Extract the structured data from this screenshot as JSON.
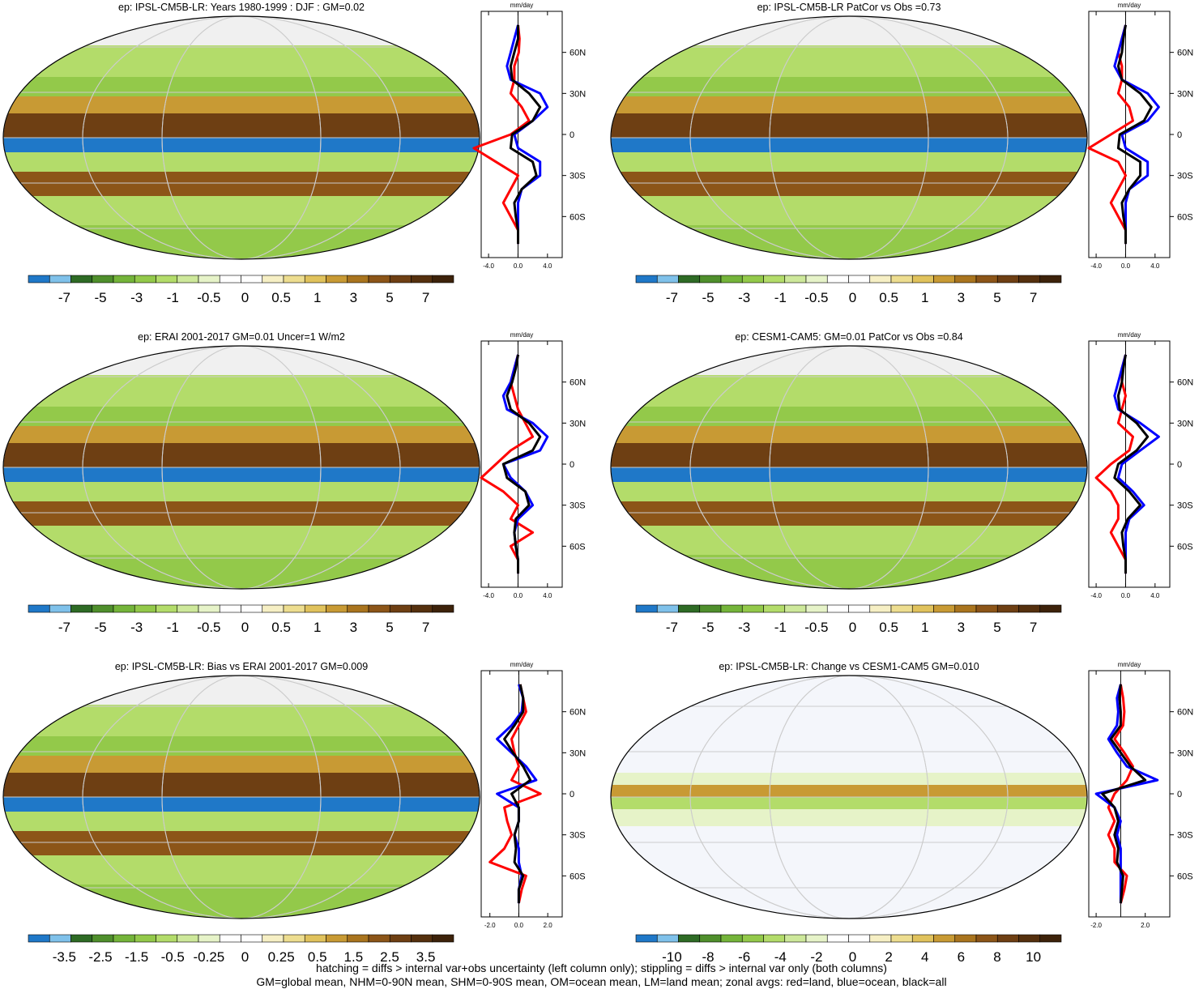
{
  "colors": {
    "precip_scale": [
      "#1f78c8",
      "#7fc1ea",
      "#2e6b25",
      "#4f8f2c",
      "#74b43a",
      "#93c94a",
      "#b3dc6a",
      "#cde89a",
      "#e6f3c8",
      "#ffffff",
      "#ffffff",
      "#f6efc4",
      "#eddd8f",
      "#e0c25c",
      "#c89a34",
      "#a9741e",
      "#8c5518",
      "#6e3f13",
      "#55300e",
      "#3d220a"
    ],
    "land_line": "#ff0000",
    "ocean_line": "#0000ff",
    "all_line": "#000000"
  },
  "footer": {
    "line1": "hatching = diffs > internal var+obs uncertainty (left column only); stippling = diffs > internal var only (both columns)",
    "line2": "GM=global mean, NHM=0-90N mean, SHM=0-90S mean, OM=ocean mean, LM=land mean; zonal avgs: red=land, blue=ocean, black=all"
  },
  "chart_data": [
    {
      "type": "heatmap",
      "title": "ep: IPSL-CM5B-LR: Years 1980-1999 : DJF : GM=0.02",
      "colorbar_labels": [
        "-7",
        "-5",
        "-3",
        "-1",
        "-0.5",
        "0",
        "0.5",
        "1",
        "3",
        "5",
        "7"
      ],
      "zonal_xlabel": "mm/day",
      "zonal_xticks": [
        "-4.0",
        "0.0",
        "4.0"
      ],
      "zonal_xlim": [
        -5,
        6
      ],
      "lat_ticks": [
        "60N",
        "30N",
        "0",
        "30S",
        "60S"
      ],
      "series": [
        {
          "color": "land",
          "lat": [
            80,
            70,
            60,
            50,
            40,
            30,
            20,
            10,
            0,
            -10,
            -20,
            -30,
            -40,
            -50,
            -60,
            -70,
            -80
          ],
          "values": [
            0,
            0.2,
            0.1,
            -0.5,
            -0.5,
            -1,
            0.5,
            1.5,
            -1,
            -6,
            -3,
            0,
            -1,
            -2,
            -1,
            0,
            0
          ]
        },
        {
          "color": "ocean",
          "lat": [
            80,
            70,
            60,
            50,
            40,
            30,
            20,
            10,
            0,
            -10,
            -20,
            -30,
            -40,
            -50,
            -60,
            -70,
            -80
          ],
          "values": [
            0,
            -0.5,
            -1,
            -1.5,
            -1,
            3,
            4,
            2,
            -0.5,
            0,
            3,
            3,
            0.5,
            0,
            0,
            0,
            0
          ]
        },
        {
          "color": "all",
          "lat": [
            80,
            70,
            60,
            50,
            40,
            30,
            20,
            10,
            0,
            -10,
            -20,
            -30,
            -40,
            -50,
            -60,
            -70,
            -80
          ],
          "values": [
            0,
            0,
            -0.5,
            -1,
            -0.8,
            1.5,
            3,
            2,
            -0.8,
            -1,
            2,
            2.5,
            0.5,
            -0.5,
            -0.3,
            0,
            0
          ]
        }
      ]
    },
    {
      "type": "heatmap",
      "title": "ep: IPSL-CM5B-LR PatCor vs Obs =0.73",
      "colorbar_labels": [
        "-7",
        "-5",
        "-3",
        "-1",
        "-0.5",
        "0",
        "0.5",
        "1",
        "3",
        "5",
        "7"
      ],
      "zonal_xlabel": "mm/day",
      "zonal_xticks": [
        "-4.0",
        "0.0",
        "4.0"
      ],
      "zonal_xlim": [
        -5,
        6
      ],
      "lat_ticks": [
        "60N",
        "30N",
        "0",
        "30S",
        "60S"
      ],
      "series": [
        {
          "color": "land",
          "lat": [
            80,
            70,
            60,
            50,
            40,
            30,
            20,
            10,
            0,
            -10,
            -20,
            -30,
            -40,
            -50,
            -60,
            -70,
            -80
          ],
          "values": [
            0,
            -0.5,
            -1,
            -0.5,
            -0.5,
            -1,
            0.5,
            1,
            -2,
            -5,
            -1,
            0,
            -1,
            -2,
            -1,
            0,
            0
          ]
        },
        {
          "color": "ocean",
          "lat": [
            80,
            70,
            60,
            50,
            40,
            30,
            20,
            10,
            0,
            -10,
            -20,
            -30,
            -40,
            -50,
            -60,
            -70,
            -80
          ],
          "values": [
            0,
            -0.5,
            -1,
            -1.5,
            -0.5,
            3,
            4.5,
            3,
            -0.5,
            0,
            3,
            3,
            0.5,
            0,
            0,
            0,
            0
          ]
        },
        {
          "color": "all",
          "lat": [
            80,
            70,
            60,
            50,
            40,
            30,
            20,
            10,
            0,
            -10,
            -20,
            -30,
            -40,
            -50,
            -60,
            -70,
            -80
          ],
          "values": [
            0,
            -0.3,
            -0.5,
            -1,
            -0.5,
            2,
            3.5,
            2.5,
            -0.8,
            -1,
            2,
            2,
            0.5,
            -0.5,
            -0.3,
            0,
            0
          ]
        }
      ]
    },
    {
      "type": "heatmap",
      "title": "ep: ERAI 2001-2017 GM=0.01 Uncer=1 W/m2",
      "colorbar_labels": [
        "-7",
        "-5",
        "-3",
        "-1",
        "-0.5",
        "0",
        "0.5",
        "1",
        "3",
        "5",
        "7"
      ],
      "zonal_xlabel": "mm/day",
      "zonal_xticks": [
        "-4.0",
        "0.0",
        "4.0"
      ],
      "zonal_xlim": [
        -5,
        6
      ],
      "lat_ticks": [
        "60N",
        "30N",
        "0",
        "30S",
        "60S"
      ],
      "series": [
        {
          "color": "land",
          "lat": [
            80,
            70,
            60,
            50,
            40,
            30,
            20,
            10,
            0,
            -10,
            -20,
            -30,
            -40,
            -50,
            -60,
            -70,
            -80
          ],
          "values": [
            0,
            -0.5,
            -1,
            -0.5,
            0,
            1,
            2,
            -1,
            -3,
            -5,
            -2,
            0,
            -1,
            2,
            -1,
            0,
            0
          ]
        },
        {
          "color": "ocean",
          "lat": [
            80,
            70,
            60,
            50,
            40,
            30,
            20,
            10,
            0,
            -10,
            -20,
            -30,
            -40,
            -50,
            -60,
            -70,
            -80
          ],
          "values": [
            0,
            -0.5,
            -1,
            -2,
            -1.5,
            2,
            4,
            3,
            -2,
            -1,
            1,
            2,
            0,
            -0.5,
            -0.3,
            0,
            0
          ]
        },
        {
          "color": "all",
          "lat": [
            80,
            70,
            60,
            50,
            40,
            30,
            20,
            10,
            0,
            -10,
            -20,
            -30,
            -40,
            -50,
            -60,
            -70,
            -80
          ],
          "values": [
            0,
            -0.3,
            -0.8,
            -1.5,
            -1,
            1.5,
            3,
            2,
            -2,
            -1.5,
            1,
            1.5,
            -0.3,
            -0.5,
            -0.3,
            0,
            0
          ]
        }
      ]
    },
    {
      "type": "heatmap",
      "title": "ep: CESM1-CAM5: GM=0.01 PatCor vs Obs =0.84",
      "colorbar_labels": [
        "-7",
        "-5",
        "-3",
        "-1",
        "-0.5",
        "0",
        "0.5",
        "1",
        "3",
        "5",
        "7"
      ],
      "zonal_xlabel": "mm/day",
      "zonal_xticks": [
        "-4.0",
        "0.0",
        "4.0"
      ],
      "zonal_xlim": [
        -5,
        6
      ],
      "lat_ticks": [
        "60N",
        "30N",
        "0",
        "30S",
        "60S"
      ],
      "series": [
        {
          "color": "land",
          "lat": [
            80,
            70,
            60,
            50,
            40,
            30,
            20,
            10,
            0,
            -10,
            -20,
            -30,
            -40,
            -50,
            -60,
            -70,
            -80
          ],
          "values": [
            0,
            -0.5,
            -0.5,
            0,
            -0.5,
            -1,
            1,
            0.5,
            -2,
            -4,
            -2,
            -1,
            -1,
            -2,
            -1,
            0,
            0
          ]
        },
        {
          "color": "ocean",
          "lat": [
            80,
            70,
            60,
            50,
            40,
            30,
            20,
            10,
            0,
            -10,
            -20,
            -30,
            -40,
            -50,
            -60,
            -70,
            -80
          ],
          "values": [
            0,
            -0.5,
            -1,
            -1.5,
            -1,
            2,
            4.5,
            2,
            -0.5,
            -1,
            1,
            2.5,
            0.5,
            0,
            0,
            0,
            0
          ]
        },
        {
          "color": "all",
          "lat": [
            80,
            70,
            60,
            50,
            40,
            30,
            20,
            10,
            0,
            -10,
            -20,
            -30,
            -40,
            -50,
            -60,
            -70,
            -80
          ],
          "values": [
            0,
            -0.3,
            -0.5,
            -1,
            -0.8,
            1.5,
            3,
            1.5,
            -1,
            -1.5,
            0.5,
            2,
            0.3,
            -0.5,
            -0.3,
            0,
            0
          ]
        }
      ]
    },
    {
      "type": "heatmap",
      "title": "ep: IPSL-CM5B-LR: Bias vs ERAI 2001-2017 GM=0.009",
      "colorbar_labels": [
        "-3.5",
        "-2.5",
        "-1.5",
        "-0.5",
        "-0.25",
        "0",
        "0.25",
        "0.5",
        "1.5",
        "2.5",
        "3.5"
      ],
      "zonal_xlabel": "mm/day",
      "zonal_xticks": [
        "-2.0",
        "0.0",
        "2.0"
      ],
      "zonal_xlim": [
        -2.6,
        3.0
      ],
      "lat_ticks": [
        "60N",
        "30N",
        "0",
        "30S",
        "60S"
      ],
      "series": [
        {
          "color": "land",
          "lat": [
            80,
            70,
            60,
            50,
            40,
            30,
            20,
            10,
            0,
            -10,
            -20,
            -30,
            -40,
            -50,
            -60,
            -70,
            -80
          ],
          "values": [
            0.1,
            0.3,
            0.5,
            0,
            -0.5,
            -0.3,
            0,
            -0.5,
            1.5,
            -1,
            -0.8,
            -0.5,
            -1,
            -2,
            0.5,
            0.2,
            0
          ]
        },
        {
          "color": "ocean",
          "lat": [
            80,
            70,
            60,
            50,
            40,
            30,
            20,
            10,
            0,
            -10,
            -20,
            -30,
            -40,
            -50,
            -60,
            -70,
            -80
          ],
          "values": [
            0,
            0.3,
            0.2,
            -0.5,
            -1.5,
            -0.5,
            0.5,
            1.2,
            -1.5,
            0,
            0,
            -0.3,
            0,
            0,
            0.2,
            0,
            0
          ]
        },
        {
          "color": "all",
          "lat": [
            80,
            70,
            60,
            50,
            40,
            30,
            20,
            10,
            0,
            -10,
            -20,
            -30,
            -40,
            -50,
            -60,
            -70,
            -80
          ],
          "values": [
            0.1,
            0.3,
            0.3,
            -0.3,
            -1,
            -0.4,
            0.3,
            0.8,
            -0.5,
            0,
            0,
            -0.3,
            -0.2,
            -0.3,
            0.3,
            0,
            0
          ]
        }
      ]
    },
    {
      "type": "heatmap",
      "title": "ep: IPSL-CM5B-LR: Change vs CESM1-CAM5 GM=0.010",
      "colorbar_labels": [
        "-10",
        "-8",
        "-6",
        "-4",
        "-2",
        "0",
        "2",
        "4",
        "6",
        "8",
        "10"
      ],
      "zonal_xlabel": "mm/day",
      "zonal_xticks": [
        "-2.0",
        "2.0"
      ],
      "zonal_xlim": [
        -2.6,
        4.0
      ],
      "lat_ticks": [
        "60N",
        "30N",
        "0",
        "30S",
        "60S"
      ],
      "series": [
        {
          "color": "land",
          "lat": [
            80,
            70,
            60,
            50,
            40,
            30,
            20,
            10,
            0,
            -10,
            -20,
            -30,
            -40,
            -50,
            -60,
            -70,
            -80
          ],
          "values": [
            0,
            0.2,
            0.3,
            0.2,
            -0.5,
            0.3,
            1,
            0.5,
            -0.5,
            -1,
            -0.5,
            -1,
            -0.5,
            -0.5,
            0.5,
            0.3,
            0
          ]
        },
        {
          "color": "ocean",
          "lat": [
            80,
            70,
            60,
            50,
            40,
            30,
            20,
            10,
            0,
            -10,
            -20,
            -30,
            -40,
            -50,
            -60,
            -70,
            -80
          ],
          "values": [
            0,
            -0.3,
            -0.2,
            -0.3,
            -1,
            -0.3,
            0.5,
            3,
            -2,
            -0.5,
            0,
            -0.3,
            0,
            0,
            0,
            0,
            0
          ]
        },
        {
          "color": "all",
          "lat": [
            80,
            70,
            60,
            50,
            40,
            30,
            20,
            10,
            0,
            -10,
            -20,
            -30,
            -40,
            -50,
            -60,
            -70,
            -80
          ],
          "values": [
            0,
            -0.1,
            0,
            0,
            -0.8,
            0,
            0.8,
            2,
            -1.5,
            -0.5,
            -0.2,
            -0.5,
            -0.2,
            -0.3,
            0.2,
            0.1,
            0
          ]
        }
      ]
    }
  ]
}
